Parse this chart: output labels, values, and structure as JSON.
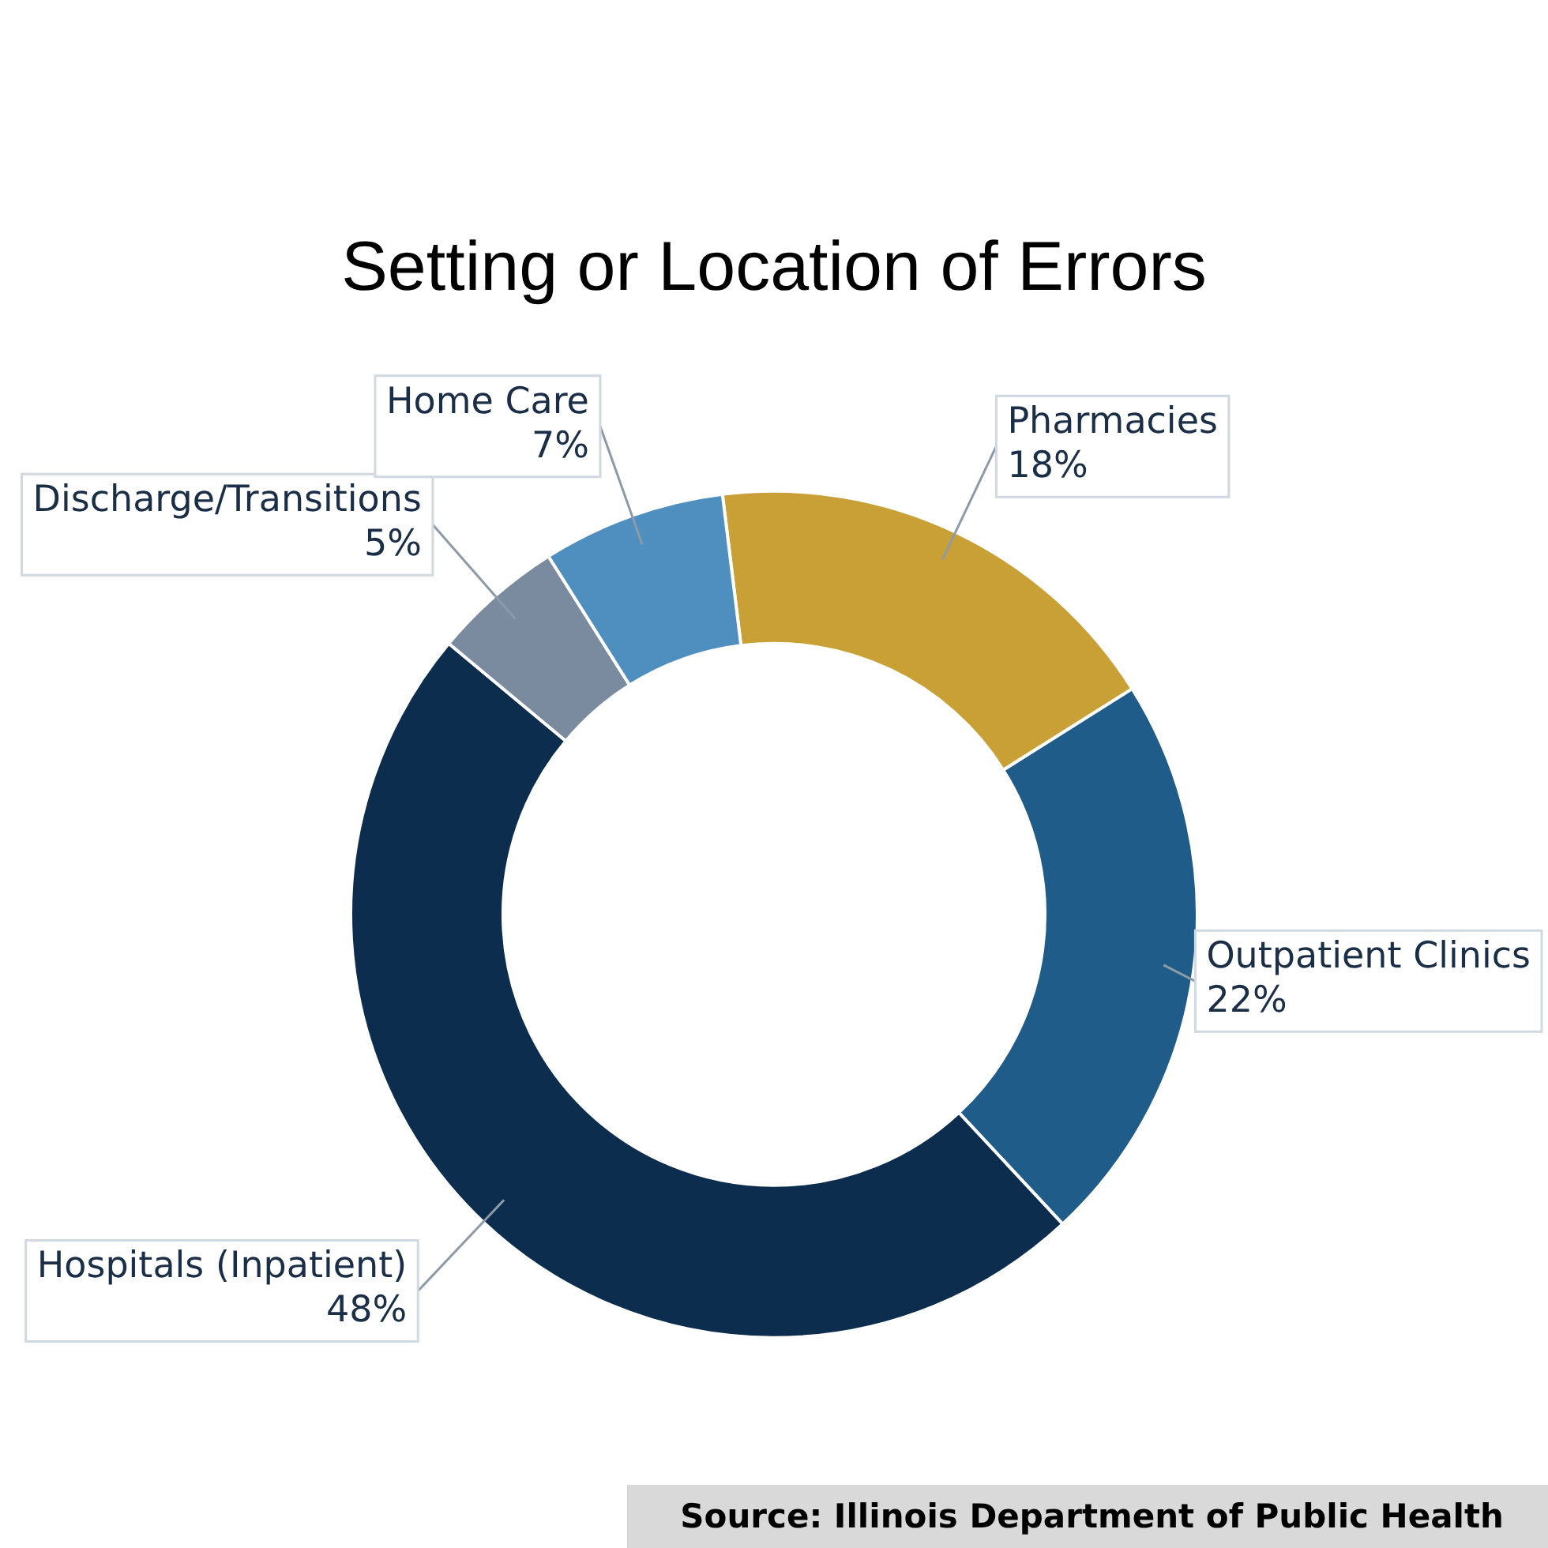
{
  "chart_data": {
    "type": "donut",
    "title": "Setting or Location of Errors",
    "categories": [
      "Pharmacies",
      "Outpatient Clinics",
      "Hospitals (Inpatient)",
      "Discharge/Transitions",
      "Home Care"
    ],
    "values": [
      18,
      22,
      48,
      5,
      7
    ],
    "colors": [
      "#c9a035",
      "#1f5c8a",
      "#0d2d4f",
      "#7a8ba0",
      "#4f8fc0"
    ],
    "value_labels": [
      "18%",
      "22%",
      "48%",
      "5%",
      "7%"
    ],
    "annotations": [
      "Source: Illinois Department of Public Health"
    ]
  }
}
